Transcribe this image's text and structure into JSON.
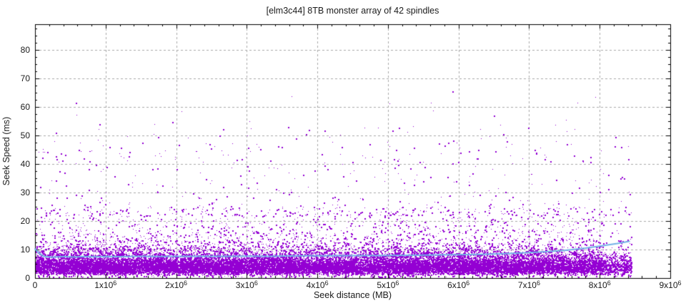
{
  "colors": {
    "background": "#ffffff",
    "text": "#1b1b1b",
    "axis": "#000000",
    "grid": "#a9a9a9",
    "points": "#9400d3",
    "trendline": "#73b3e7"
  },
  "chart_data": {
    "type": "scatter",
    "title": "[elm3c44] 8TB monster array of 42 spindles",
    "xlabel": "Seek distance (MB)",
    "ylabel": "Seek Speed (ms)",
    "xlim": [
      0,
      9000000
    ],
    "ylim": [
      0,
      89
    ],
    "grid": true,
    "legend": "none",
    "x_ticks": {
      "major_interval": 1000000,
      "minor_per_major": 4,
      "labels": [
        "0",
        "1x10^6",
        "2x10^6",
        "3x10^6",
        "4x10^6",
        "5x10^6",
        "6x10^6",
        "7x10^6",
        "8x10^6",
        "9x10^6"
      ]
    },
    "y_ticks": {
      "major_interval": 10,
      "minor_per_major": 3,
      "labels": [
        "0",
        "10",
        "20",
        "30",
        "40",
        "50",
        "60",
        "70",
        "80"
      ]
    },
    "series": [
      {
        "name": "seek-samples",
        "type": "scatter",
        "color": "#9400d3",
        "marker": "dot",
        "point_count": 26000,
        "x_data_max": 8450000,
        "y_data_max": 66,
        "summary": "dense band ~2-10 ms across 0-8.45M MB tapering to ~25 ms, sparse outliers up to ~66 ms, density thins beyond 7.2M MB",
        "generation": {
          "seed": 20240642,
          "x_mixture": [
            {
              "weight": 0.82,
              "type": "uniform",
              "range": [
                0,
                8050000
              ]
            },
            {
              "weight": 0.155,
              "type": "uniform",
              "range": [
                0,
                7200000
              ]
            },
            {
              "weight": 0.025,
              "type": "uniform",
              "range": [
                8050000,
                8450000
              ]
            }
          ],
          "y_mixture": [
            {
              "weight": 0.853,
              "type": "lognormal",
              "median": 4.5,
              "sigma": 0.47,
              "clamp": [
                0.35,
                25
              ]
            },
            {
              "weight": 0.06,
              "type": "uniform",
              "range": [
                0.35,
                6.5
              ]
            },
            {
              "weight": 0.067,
              "type": "power",
              "base": 8,
              "span": 17,
              "exp": 1.7
            },
            {
              "weight": 0.0165,
              "type": "power",
              "base": 22,
              "span": 26,
              "exp": 1.8
            },
            {
              "weight": 0.0028,
              "type": "uniform",
              "range": [
                40,
                54
              ]
            },
            {
              "weight": 0.0007,
              "type": "uniform",
              "range": [
                52,
                66
              ]
            }
          ]
        }
      },
      {
        "name": "trend",
        "type": "line",
        "color": "#73b3e7",
        "width": 2,
        "points": [
          [
            0,
            10.2
          ],
          [
            50000,
            8.9
          ],
          [
            120000,
            7.6
          ],
          [
            250000,
            7.3
          ],
          [
            400000,
            7.55
          ],
          [
            550000,
            7.35
          ],
          [
            700000,
            7.55
          ],
          [
            850000,
            7.45
          ],
          [
            1000000,
            7.55
          ],
          [
            1200000,
            7.5
          ],
          [
            1500000,
            7.6
          ],
          [
            1800000,
            7.55
          ],
          [
            2100000,
            7.65
          ],
          [
            2400000,
            7.6
          ],
          [
            2700000,
            7.65
          ],
          [
            3000000,
            7.7
          ],
          [
            3300000,
            7.65
          ],
          [
            3600000,
            7.75
          ],
          [
            3900000,
            7.8
          ],
          [
            4200000,
            7.8
          ],
          [
            4500000,
            7.85
          ],
          [
            4800000,
            7.9
          ],
          [
            5100000,
            7.95
          ],
          [
            5400000,
            8.0
          ],
          [
            5700000,
            8.1
          ],
          [
            6000000,
            8.2
          ],
          [
            6300000,
            8.3
          ],
          [
            6600000,
            8.5
          ],
          [
            6900000,
            8.8
          ],
          [
            7200000,
            9.2
          ],
          [
            7500000,
            9.7
          ],
          [
            7800000,
            10.5
          ],
          [
            8050000,
            11.4
          ],
          [
            8250000,
            12.1
          ],
          [
            8420000,
            12.9
          ]
        ]
      }
    ]
  }
}
